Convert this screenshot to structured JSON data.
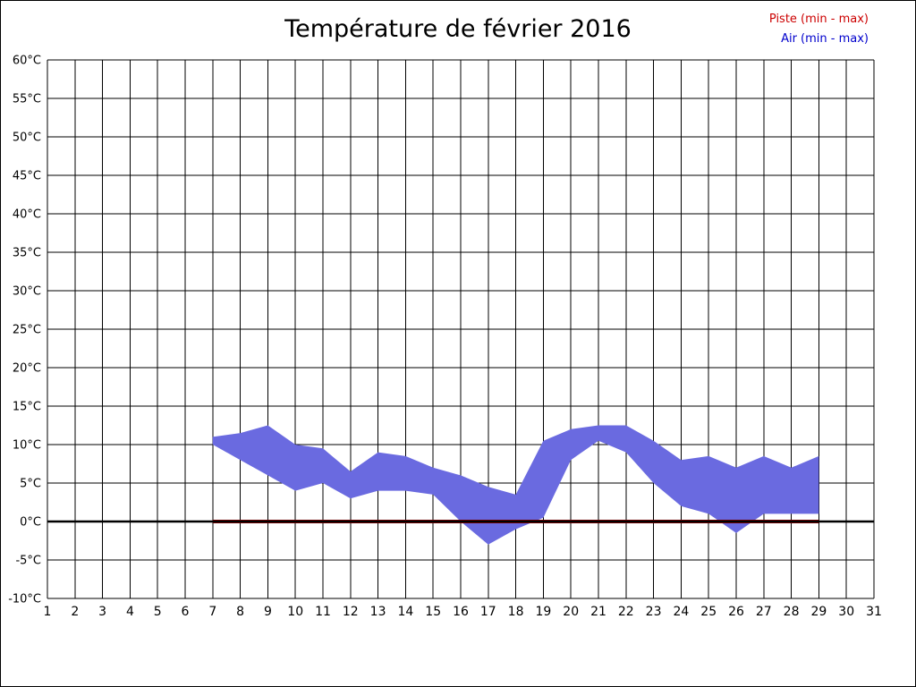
{
  "page": {
    "title": "Température de février 2016"
  },
  "legend": {
    "piste_label": "Piste (min - max)",
    "piste_color": "#cc0000",
    "air_label": "Air (min - max)",
    "air_color": "#0000cc"
  },
  "chart_data": {
    "type": "area",
    "title": "Température de février 2016",
    "ylim": [
      -10,
      60
    ],
    "ytick_step": 5,
    "grid": true,
    "legend_position": "top-right",
    "zero_line": {
      "value": 0,
      "color": "#000000"
    },
    "ytick_labels": [
      "60°C",
      "55°C",
      "50°C",
      "45°C",
      "40°C",
      "35°C",
      "30°C",
      "25°C",
      "20°C",
      "15°C",
      "10°C",
      "5°C",
      "0°C",
      "-5°C",
      "-10°C"
    ],
    "xtick_labels": [
      "1",
      "2",
      "3",
      "4",
      "5",
      "6",
      "7",
      "8",
      "9",
      "10",
      "11",
      "12",
      "13",
      "14",
      "15",
      "16",
      "17",
      "18",
      "19",
      "20",
      "21",
      "22",
      "23",
      "24",
      "25",
      "26",
      "27",
      "28",
      "29",
      "30",
      "31"
    ],
    "series": [
      {
        "id": "piste",
        "name": "Piste (min - max)",
        "color": "#8b0000",
        "days": [
          7,
          8,
          9,
          10,
          11,
          12,
          13,
          14,
          15,
          16,
          17,
          18,
          19,
          20,
          21,
          22,
          23,
          24,
          25,
          26,
          27,
          28,
          29
        ],
        "min": [
          0,
          0,
          0,
          0,
          0,
          0,
          0,
          0,
          0,
          0,
          0,
          0,
          0,
          0,
          0,
          0,
          0,
          0,
          0,
          0,
          0,
          0,
          0
        ],
        "max": [
          0,
          0,
          0,
          0,
          0,
          0,
          0,
          0,
          0,
          0,
          0,
          0,
          0,
          0,
          0,
          0,
          0,
          0,
          0,
          0,
          0,
          0,
          0
        ]
      },
      {
        "id": "air",
        "name": "Air (min - max)",
        "color": "#6a6ae0",
        "days": [
          7,
          8,
          9,
          10,
          11,
          12,
          13,
          14,
          15,
          16,
          17,
          18,
          19,
          20,
          21,
          22,
          23,
          24,
          25,
          26,
          27,
          28,
          29
        ],
        "min": [
          10,
          8,
          6,
          4,
          5,
          3,
          4,
          4,
          3.5,
          0,
          -3,
          -1,
          0.5,
          8,
          10.5,
          9,
          5,
          2,
          1,
          -1.5,
          1,
          1,
          1
        ],
        "max": [
          11,
          11.5,
          12.5,
          10,
          9.5,
          6.5,
          9,
          8.5,
          7,
          6,
          4.5,
          3.5,
          10.5,
          12,
          12.5,
          12.5,
          10.5,
          8,
          8.5,
          7,
          8.5,
          7,
          8.5
        ]
      }
    ]
  }
}
